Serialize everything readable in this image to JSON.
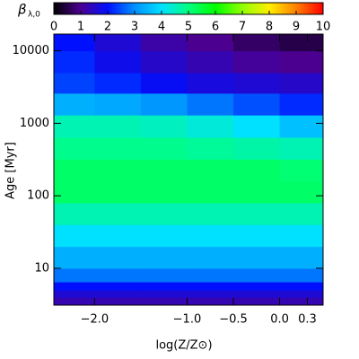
{
  "chart_data": {
    "type": "heatmap",
    "colorbar_label": "β",
    "colorbar_label_sub": "λ,0",
    "x_label": "log(Z/Z⊙)",
    "y_label": "Age [Myr]",
    "x_edges": [
      -2.44,
      -2.0,
      -1.5,
      -1.0,
      -0.5,
      0.0,
      0.47
    ],
    "y_edges": [
      3.1,
      4,
      5,
      6.5,
      10,
      20,
      40,
      80,
      160,
      320,
      640,
      1300,
      2600,
      5000,
      10000,
      17000
    ],
    "z": [
      [
        1.3,
        1.3,
        1.3,
        1.3,
        1.3,
        1.3
      ],
      [
        1.6,
        1.6,
        1.6,
        1.6,
        1.6,
        1.6
      ],
      [
        2.0,
        2.0,
        2.0,
        2.0,
        2.0,
        2.0
      ],
      [
        2.8,
        2.8,
        2.8,
        2.8,
        2.8,
        2.8
      ],
      [
        3.4,
        3.4,
        3.4,
        3.4,
        3.4,
        3.4
      ],
      [
        4.0,
        4.0,
        4.0,
        4.0,
        4.0,
        4.0
      ],
      [
        4.6,
        4.6,
        4.6,
        4.6,
        4.6,
        4.6
      ],
      [
        5.2,
        5.2,
        5.2,
        5.2,
        5.2,
        5.2
      ],
      [
        5.2,
        5.2,
        5.2,
        5.2,
        5.2,
        5.1
      ],
      [
        4.9,
        4.9,
        4.9,
        4.8,
        4.7,
        4.6
      ],
      [
        4.6,
        4.6,
        4.5,
        4.3,
        4.0,
        3.6
      ],
      [
        3.4,
        3.3,
        3.1,
        2.8,
        2.5,
        2.2
      ],
      [
        2.4,
        2.2,
        1.9,
        1.7,
        1.6,
        1.5
      ],
      [
        2.2,
        1.8,
        1.5,
        1.3,
        1.1,
        1.0
      ],
      [
        2.0,
        1.6,
        1.2,
        1.0,
        0.7,
        0.5
      ]
    ],
    "colormap": [
      "#000000",
      "#4b0090",
      "#0010ff",
      "#0090ff",
      "#00e0ff",
      "#00ff80",
      "#00ff00",
      "#90ff00",
      "#ffee00",
      "#ff8000",
      "#ff0000"
    ],
    "clim": [
      0,
      10
    ],
    "cticks": [
      0,
      1,
      2,
      3,
      4,
      5,
      6,
      7,
      8,
      9,
      10
    ],
    "xlim": [
      -2.44,
      0.47
    ],
    "xticks": [
      {
        "value": -2.0,
        "label": "−2.0"
      },
      {
        "value": -1.0,
        "label": "−1.0"
      },
      {
        "value": -0.5,
        "label": "−0.5"
      },
      {
        "value": 0.0,
        "label": "0.0"
      },
      0.3
    ],
    "ylim": [
      3.1,
      17000
    ],
    "yticks": [
      10,
      100,
      1000,
      10000
    ],
    "ylog": true
  }
}
